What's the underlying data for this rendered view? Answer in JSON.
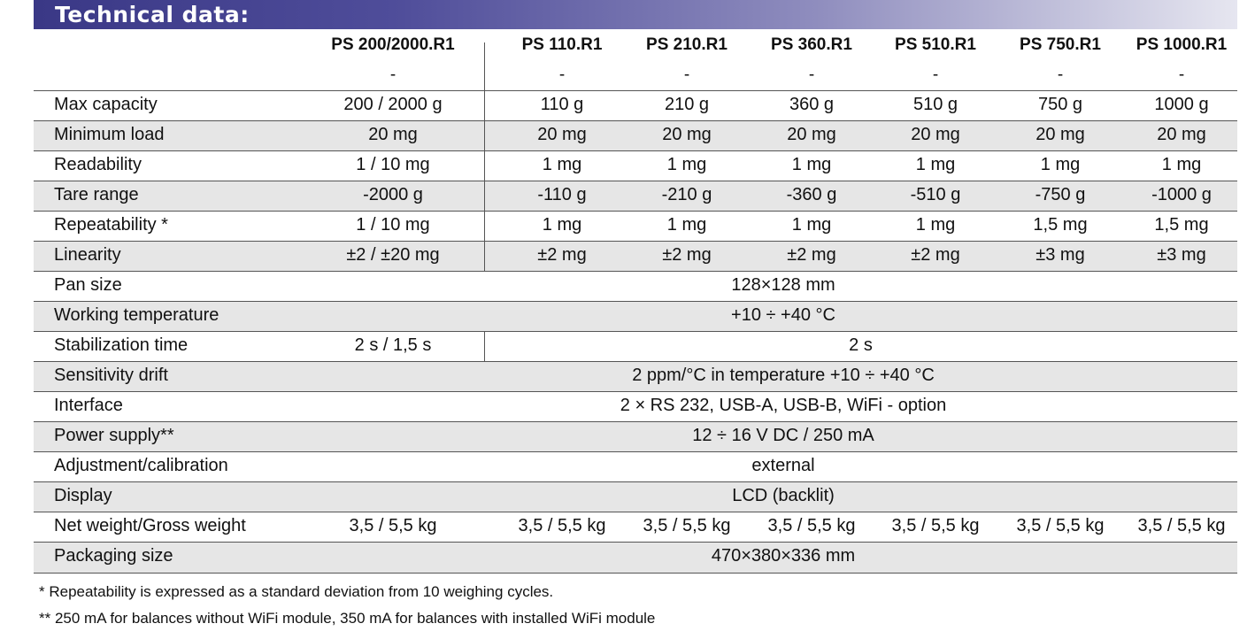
{
  "section_title": "Technical data:",
  "models": [
    {
      "name": "PS 200/2000.R1",
      "sub": "-"
    },
    {
      "name": "PS 110.R1",
      "sub": "-"
    },
    {
      "name": "PS 210.R1",
      "sub": "-"
    },
    {
      "name": "PS 360.R1",
      "sub": "-"
    },
    {
      "name": "PS 510.R1",
      "sub": "-"
    },
    {
      "name": "PS 750.R1",
      "sub": "-"
    },
    {
      "name": "PS 1000.R1",
      "sub": "-"
    }
  ],
  "rows": [
    {
      "label": "Max capacity",
      "cells": [
        "200 / 2000 g",
        "110 g",
        "210 g",
        "360 g",
        "510 g",
        "750 g",
        "1000 g"
      ]
    },
    {
      "label": "Minimum load",
      "cells": [
        "20 mg",
        "20 mg",
        "20 mg",
        "20 mg",
        "20 mg",
        "20 mg",
        "20 mg"
      ]
    },
    {
      "label": "Readability",
      "cells": [
        "1 / 10 mg",
        "1 mg",
        "1 mg",
        "1 mg",
        "1 mg",
        "1 mg",
        "1 mg"
      ]
    },
    {
      "label": "Tare range",
      "cells": [
        "-2000 g",
        "-110 g",
        "-210 g",
        "-360 g",
        "-510 g",
        "-750 g",
        "-1000 g"
      ]
    },
    {
      "label": "Repeatability *",
      "cells": [
        "1 / 10 mg",
        "1 mg",
        "1 mg",
        "1 mg",
        "1 mg",
        "1,5 mg",
        "1,5 mg"
      ]
    },
    {
      "label": "Linearity",
      "cells": [
        "±2 / ±20 mg",
        "±2 mg",
        "±2 mg",
        "±2 mg",
        "±2 mg",
        "±3 mg",
        "±3 mg"
      ]
    },
    {
      "label": "Pan size",
      "span": "128×128 mm"
    },
    {
      "label": "Working temperature",
      "span": "+10 ÷ +40 °C"
    },
    {
      "label": "Stabilization time",
      "first": "2 s / 1,5 s",
      "rest": "2 s"
    },
    {
      "label": "Sensitivity drift",
      "span": "2 ppm/°C in temperature  +10 ÷ +40 °C"
    },
    {
      "label": "Interface",
      "span": "2 × RS 232, USB-A, USB-B, WiFi - option"
    },
    {
      "label": "Power supply**",
      "span": "12 ÷ 16 V DC / 250 mA"
    },
    {
      "label": "Adjustment/calibration",
      "span": "external"
    },
    {
      "label": "Display",
      "span": "LCD (backlit)"
    },
    {
      "label": "Net weight/Gross weight",
      "cells": [
        "3,5 / 5,5 kg",
        "3,5 / 5,5 kg",
        "3,5 / 5,5 kg",
        "3,5 / 5,5 kg",
        "3,5 / 5,5 kg",
        "3,5 / 5,5 kg",
        "3,5 / 5,5 kg"
      ]
    },
    {
      "label": "Packaging size",
      "span": "470×380×336 mm"
    }
  ],
  "footnotes": [
    "* Repeatability is expressed as a standard deviation from 10 weighing cycles.",
    "** 250 mA for balances without WiFi module, 350 mA for balances with installed WiFi module"
  ]
}
